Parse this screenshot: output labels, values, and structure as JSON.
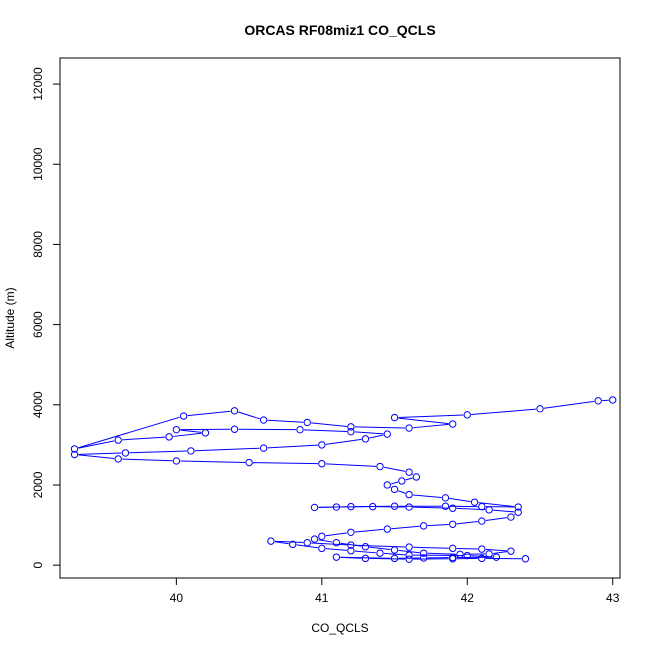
{
  "chart_data": {
    "type": "line",
    "title": "ORCAS RF08miz1 CO_QCLS",
    "xlabel": "CO_QCLS",
    "ylabel": "Altitude (m)",
    "xlim": [
      39.2,
      43.05
    ],
    "ylim": [
      -320,
      12650
    ],
    "xticks": [
      40,
      41,
      42,
      43
    ],
    "yticks": [
      0,
      2000,
      4000,
      6000,
      8000,
      10000,
      12000
    ],
    "grid": false,
    "legend": "none",
    "color": "#0000ff",
    "markers": "open-circle",
    "series": [
      {
        "points": [
          [
            42.4,
            160
          ],
          [
            42.1,
            170
          ],
          [
            41.9,
            160
          ],
          [
            41.6,
            150
          ],
          [
            41.3,
            170
          ],
          [
            41.1,
            200
          ],
          [
            41.5,
            170
          ],
          [
            41.7,
            180
          ],
          [
            41.9,
            190
          ],
          [
            42.2,
            200
          ],
          [
            42.0,
            240
          ],
          [
            41.6,
            250
          ],
          [
            41.4,
            300
          ],
          [
            41.2,
            360
          ],
          [
            41.0,
            420
          ],
          [
            40.8,
            520
          ],
          [
            40.65,
            600
          ],
          [
            40.9,
            560
          ],
          [
            41.2,
            500
          ],
          [
            41.6,
            450
          ],
          [
            41.9,
            420
          ],
          [
            42.1,
            400
          ],
          [
            42.3,
            350
          ],
          [
            42.15,
            280
          ],
          [
            41.95,
            270
          ],
          [
            41.7,
            300
          ],
          [
            41.5,
            380
          ],
          [
            41.3,
            460
          ],
          [
            41.1,
            560
          ],
          [
            40.95,
            650
          ],
          [
            41.0,
            720
          ],
          [
            41.2,
            820
          ],
          [
            41.45,
            900
          ],
          [
            41.7,
            980
          ],
          [
            41.9,
            1020
          ],
          [
            42.1,
            1100
          ],
          [
            42.3,
            1200
          ],
          [
            42.35,
            1320
          ],
          [
            42.15,
            1380
          ],
          [
            41.9,
            1420
          ],
          [
            41.6,
            1450
          ],
          [
            41.35,
            1460
          ],
          [
            41.1,
            1450
          ],
          [
            40.95,
            1440
          ],
          [
            41.2,
            1460
          ],
          [
            41.5,
            1470
          ],
          [
            41.85,
            1470
          ],
          [
            42.1,
            1460
          ],
          [
            42.35,
            1450
          ],
          [
            42.05,
            1570
          ],
          [
            41.85,
            1680
          ],
          [
            41.6,
            1760
          ],
          [
            41.5,
            1890
          ],
          [
            41.45,
            2000
          ],
          [
            41.55,
            2100
          ],
          [
            41.65,
            2200
          ],
          [
            41.6,
            2320
          ],
          [
            41.4,
            2460
          ],
          [
            41.0,
            2530
          ],
          [
            40.5,
            2560
          ],
          [
            40.0,
            2600
          ],
          [
            39.6,
            2650
          ],
          [
            39.3,
            2760
          ],
          [
            39.65,
            2800
          ],
          [
            40.1,
            2850
          ],
          [
            40.6,
            2920
          ],
          [
            41.0,
            3000
          ],
          [
            41.3,
            3150
          ],
          [
            41.45,
            3270
          ],
          [
            41.2,
            3330
          ],
          [
            40.85,
            3380
          ],
          [
            40.4,
            3390
          ],
          [
            40.0,
            3380
          ],
          [
            40.2,
            3300
          ],
          [
            39.95,
            3200
          ],
          [
            39.6,
            3120
          ],
          [
            39.3,
            2900
          ],
          [
            40.05,
            3720
          ],
          [
            40.4,
            3850
          ],
          [
            40.6,
            3620
          ],
          [
            40.9,
            3560
          ],
          [
            41.2,
            3450
          ],
          [
            41.6,
            3420
          ],
          [
            41.9,
            3520
          ],
          [
            41.5,
            3680
          ],
          [
            42.0,
            3750
          ],
          [
            42.5,
            3900
          ],
          [
            42.9,
            4100
          ],
          [
            43.0,
            4120
          ]
        ]
      }
    ]
  }
}
